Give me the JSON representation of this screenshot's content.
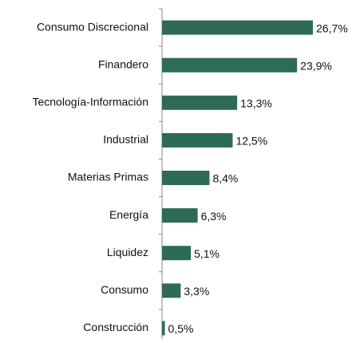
{
  "chart_data": {
    "type": "bar",
    "orientation": "horizontal",
    "categories": [
      "Consumo Discrecional",
      "Finandero",
      "Tecnología-Información",
      "Industrial",
      "Materias Primas",
      "Energía",
      "Liquidez",
      "Consumo",
      "Construcción"
    ],
    "values": [
      26.7,
      23.9,
      13.3,
      12.5,
      8.4,
      6.3,
      5.1,
      3.3,
      0.5
    ],
    "value_labels": [
      "26,7%",
      "23,9%",
      "13,3%",
      "12,5%",
      "8,4%",
      "6,3%",
      "5,1%",
      "3,3%",
      "0,5%"
    ],
    "color": "#2e6b55"
  }
}
